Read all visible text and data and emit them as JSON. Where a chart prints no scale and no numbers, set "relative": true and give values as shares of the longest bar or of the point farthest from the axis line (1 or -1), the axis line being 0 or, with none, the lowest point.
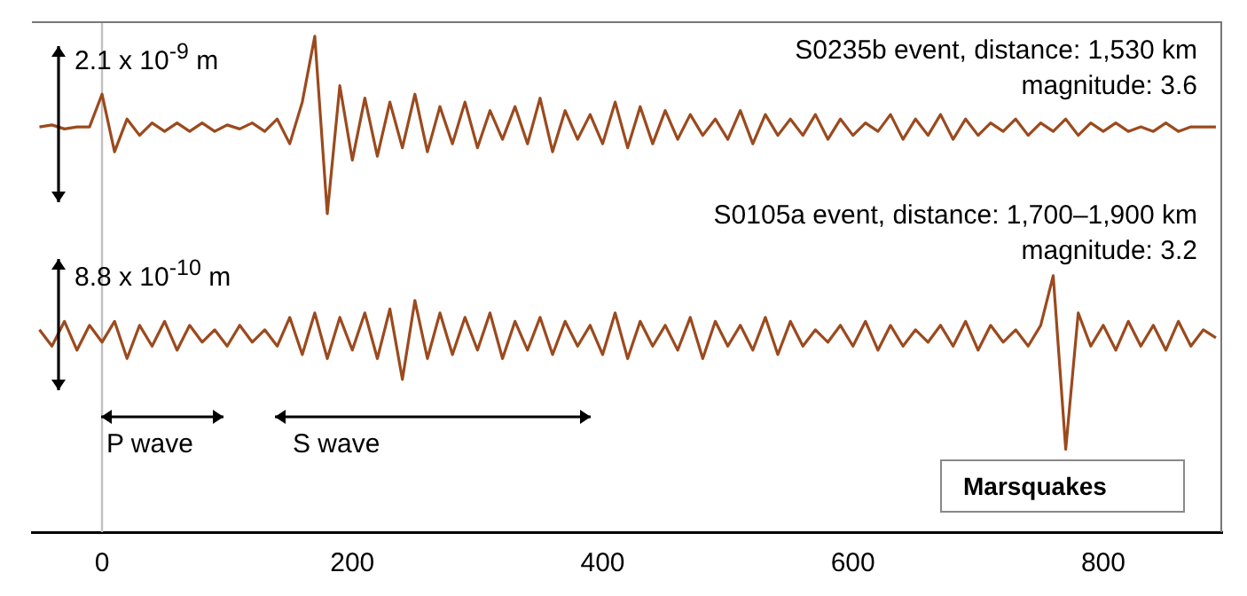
{
  "chart_data": {
    "type": "line",
    "relative": true,
    "marker": "none",
    "line_style": "solid",
    "grid": false,
    "legend": false,
    "xlim": [
      -56,
      895
    ],
    "xticks": [
      0,
      200,
      400,
      600,
      800
    ],
    "ref_lines": [
      {
        "axis": "x",
        "value": 0,
        "color": "#c0c0c0"
      }
    ],
    "annotations": [
      "2.1 x 10$^{-9}$ m",
      "S0235b event, distance: 1,530 km",
      "magnitude: 3.6",
      "8.8 x 10$^{-10}$ m",
      "S0105a event, distance: 1,700–1,900 km",
      "magnitude: 3.2",
      "P wave",
      "S wave",
      "Marsquakes"
    ],
    "x": [
      -50,
      -40,
      -30,
      -20,
      -10,
      0,
      10,
      20,
      30,
      40,
      50,
      60,
      70,
      80,
      90,
      100,
      110,
      120,
      130,
      140,
      150,
      160,
      170,
      180,
      190,
      200,
      210,
      220,
      230,
      240,
      250,
      260,
      270,
      280,
      290,
      300,
      310,
      320,
      330,
      340,
      350,
      360,
      370,
      380,
      390,
      400,
      410,
      420,
      430,
      440,
      450,
      460,
      470,
      480,
      490,
      500,
      510,
      520,
      530,
      540,
      550,
      560,
      570,
      580,
      590,
      600,
      610,
      620,
      630,
      640,
      650,
      660,
      670,
      680,
      690,
      700,
      710,
      720,
      730,
      740,
      750,
      760,
      770,
      780,
      790,
      800,
      810,
      820,
      830,
      840,
      850,
      860,
      870,
      880,
      890
    ],
    "series": [
      {
        "color": "#9b4a1e",
        "values": [
          0.817,
          0.821,
          0.813,
          0.817,
          0.817,
          0.883,
          0.767,
          0.833,
          0.8,
          0.825,
          0.808,
          0.825,
          0.808,
          0.825,
          0.808,
          0.821,
          0.813,
          0.825,
          0.808,
          0.833,
          0.783,
          0.867,
          1.0,
          0.642,
          0.9,
          0.75,
          0.875,
          0.758,
          0.867,
          0.775,
          0.883,
          0.767,
          0.858,
          0.783,
          0.867,
          0.775,
          0.85,
          0.792,
          0.858,
          0.783,
          0.875,
          0.767,
          0.85,
          0.792,
          0.842,
          0.783,
          0.867,
          0.775,
          0.858,
          0.783,
          0.85,
          0.792,
          0.842,
          0.8,
          0.833,
          0.792,
          0.85,
          0.783,
          0.842,
          0.8,
          0.833,
          0.8,
          0.842,
          0.792,
          0.833,
          0.8,
          0.825,
          0.808,
          0.842,
          0.792,
          0.833,
          0.8,
          0.842,
          0.792,
          0.833,
          0.8,
          0.825,
          0.808,
          0.833,
          0.8,
          0.825,
          0.808,
          0.833,
          0.8,
          0.825,
          0.808,
          0.825,
          0.808,
          0.817,
          0.808,
          0.825,
          0.808,
          0.817,
          0.817,
          0.817
        ]
      },
      {
        "color": "#9b4a1e",
        "values": [
          0.408,
          0.375,
          0.425,
          0.367,
          0.417,
          0.383,
          0.425,
          0.35,
          0.417,
          0.375,
          0.425,
          0.367,
          0.417,
          0.383,
          0.408,
          0.375,
          0.417,
          0.383,
          0.408,
          0.375,
          0.433,
          0.358,
          0.442,
          0.35,
          0.433,
          0.367,
          0.442,
          0.35,
          0.45,
          0.308,
          0.467,
          0.35,
          0.442,
          0.358,
          0.433,
          0.367,
          0.442,
          0.35,
          0.425,
          0.367,
          0.433,
          0.358,
          0.425,
          0.375,
          0.417,
          0.358,
          0.442,
          0.35,
          0.425,
          0.375,
          0.417,
          0.367,
          0.433,
          0.35,
          0.425,
          0.375,
          0.417,
          0.367,
          0.433,
          0.358,
          0.425,
          0.375,
          0.408,
          0.383,
          0.417,
          0.375,
          0.425,
          0.367,
          0.417,
          0.375,
          0.408,
          0.383,
          0.417,
          0.375,
          0.425,
          0.367,
          0.417,
          0.383,
          0.408,
          0.375,
          0.417,
          0.517,
          0.167,
          0.442,
          0.375,
          0.417,
          0.367,
          0.425,
          0.375,
          0.417,
          0.367,
          0.425,
          0.375,
          0.408,
          0.392
        ]
      }
    ]
  }
}
